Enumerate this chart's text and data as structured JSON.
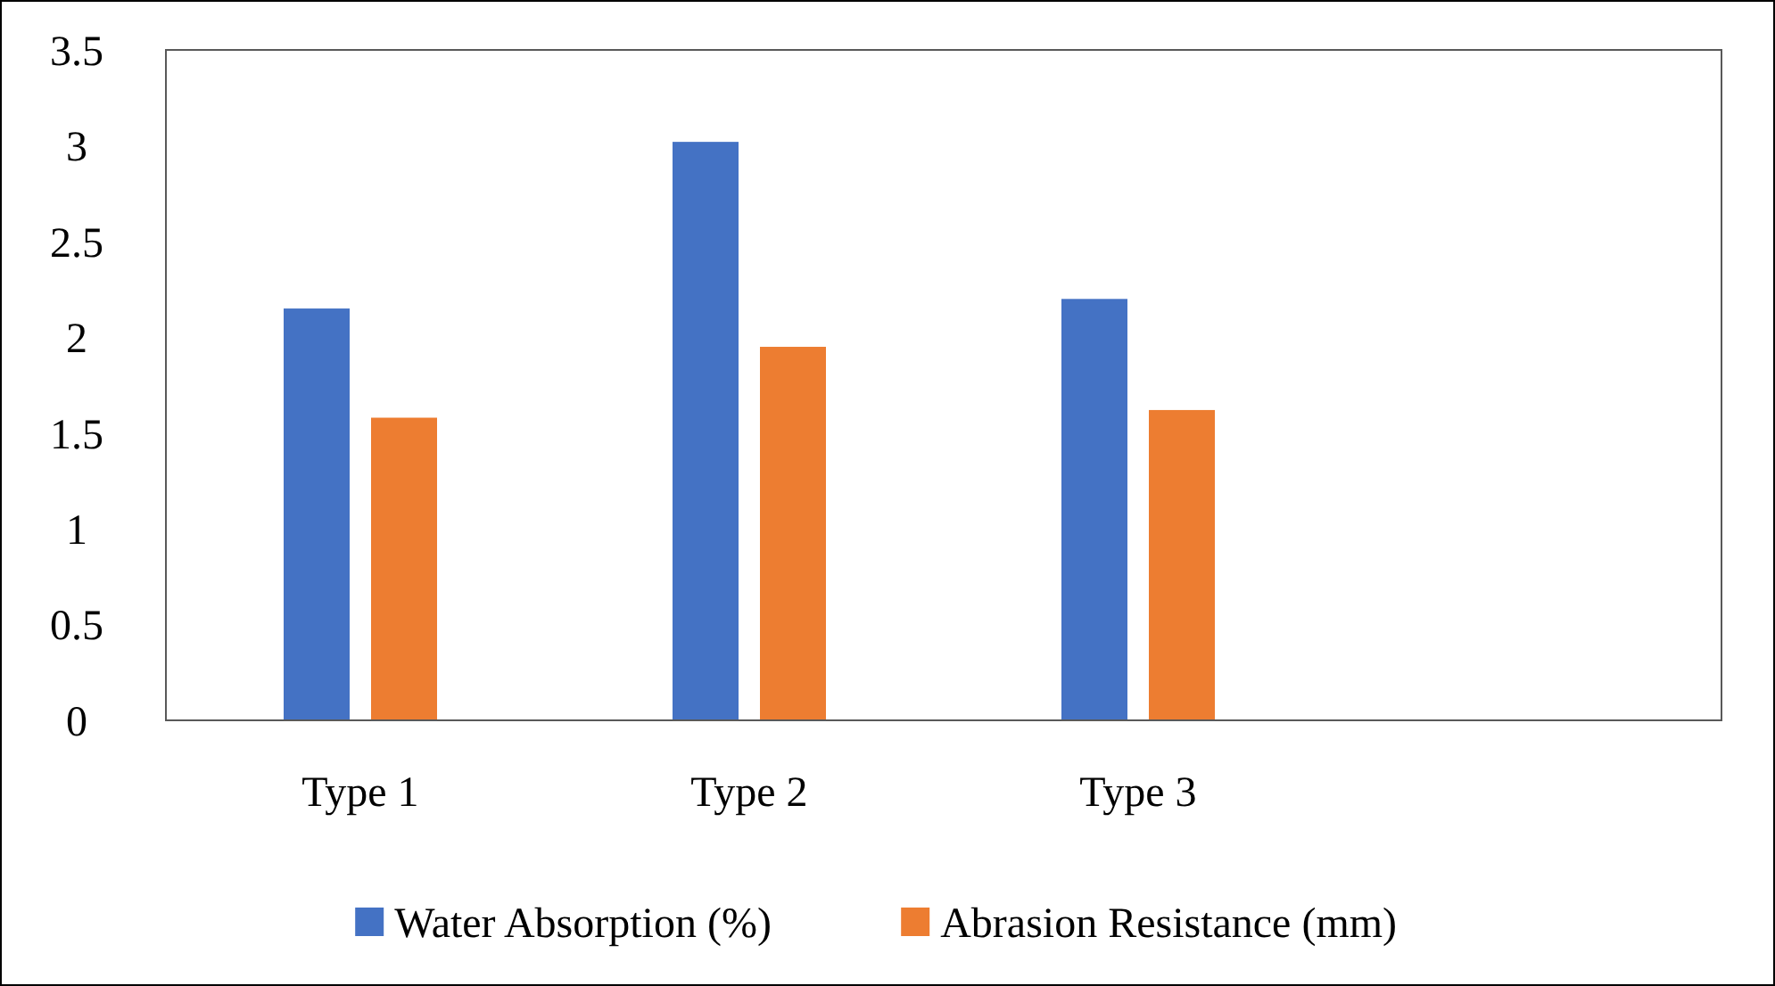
{
  "chart_data": {
    "type": "bar",
    "categories": [
      "Type 1",
      "Type 2",
      "Type 3",
      null
    ],
    "series": [
      {
        "name": "Water Absorption (%)",
        "color": "#4472c4",
        "values": [
          2.15,
          3.02,
          2.2,
          null
        ]
      },
      {
        "name": "Abrasion Resistance (mm)",
        "color": "#ed7d31",
        "values": [
          1.58,
          1.95,
          1.62,
          null
        ]
      }
    ],
    "ylim": [
      0,
      3.5
    ],
    "yticks": [
      0,
      0.5,
      1,
      1.5,
      2,
      2.5,
      3,
      3.5
    ],
    "grid": false,
    "legend": "bottom"
  }
}
